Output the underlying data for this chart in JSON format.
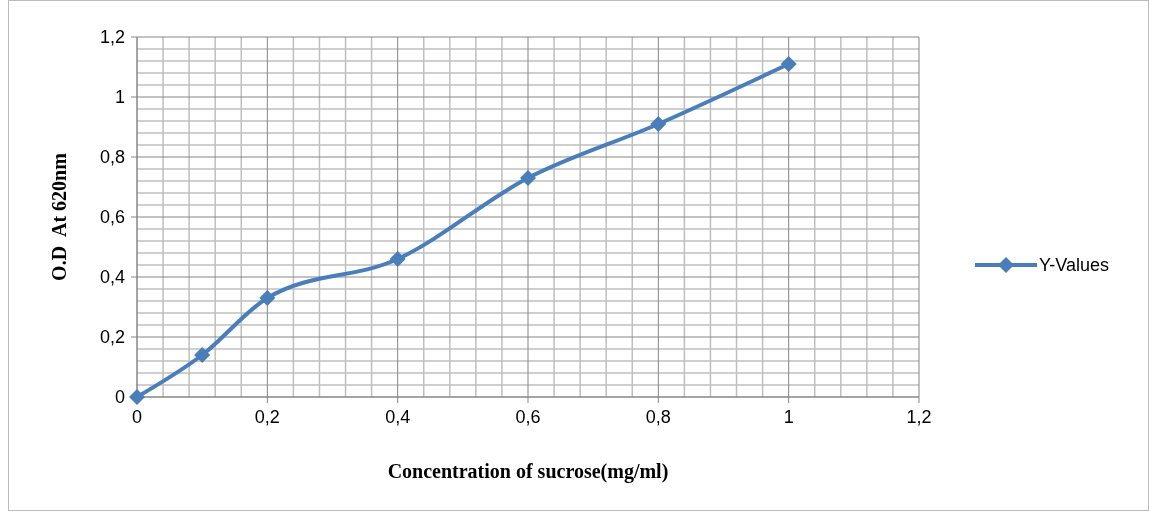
{
  "chart_data": {
    "type": "line",
    "xlabel": "Concentration of sucrose(mg/ml)",
    "ylabel": "O.D  At 620nm",
    "x": [
      0,
      0.1,
      0.2,
      0.4,
      0.6,
      0.8,
      1
    ],
    "series": [
      {
        "name": "Y-Values",
        "color": "#4a7ebb",
        "values": [
          0,
          0.14,
          0.33,
          0.46,
          0.73,
          0.91,
          1.11
        ]
      }
    ],
    "xlim": [
      0,
      1.2
    ],
    "ylim": [
      0,
      1.2
    ],
    "xticks": [
      0,
      {
        "value": 0.2,
        "label": "0,2"
      },
      {
        "value": 0.4,
        "label": "0,4"
      },
      {
        "value": 0.6,
        "label": "0,6"
      },
      {
        "value": 0.8,
        "label": "0,8"
      },
      1,
      {
        "value": 1.2,
        "label": "1,2"
      }
    ],
    "yticks": [
      0,
      {
        "value": 0.2,
        "label": "0,2"
      },
      {
        "value": 0.4,
        "label": "0,4"
      },
      {
        "value": 0.6,
        "label": "0,6"
      },
      {
        "value": 0.8,
        "label": "0,8"
      },
      1,
      {
        "value": 1.2,
        "label": "1,2"
      }
    ],
    "grid": true,
    "legend": "right",
    "marker": "diamond",
    "line_style": "solid"
  }
}
